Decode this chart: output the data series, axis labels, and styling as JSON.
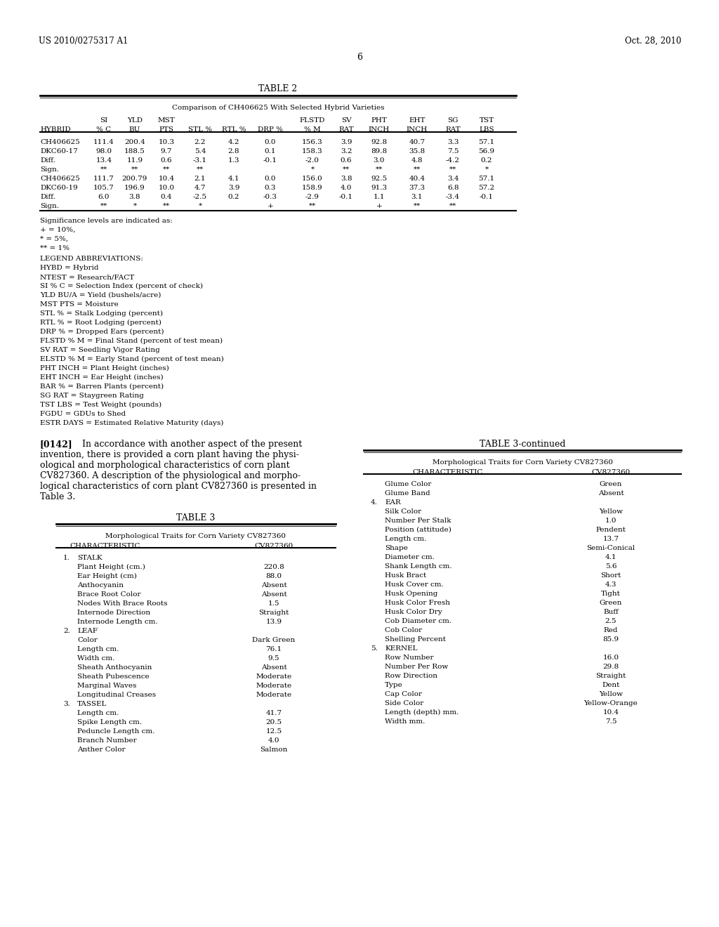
{
  "bg_color": "#ffffff",
  "header_left": "US 2010/0275317 A1",
  "header_right": "Oct. 28, 2010",
  "page_number": "6",
  "table2_title": "TABLE 2",
  "table2_subtitle": "Comparison of CH406625 With Selected Hybrid Varieties",
  "table2_data": [
    [
      "CH406625",
      "111.4",
      "200.4",
      "10.3",
      "2.2",
      "4.2",
      "0.0",
      "156.3",
      "3.9",
      "92.8",
      "40.7",
      "3.3",
      "57.1"
    ],
    [
      "DKC60-17",
      "98.0",
      "188.5",
      "9.7",
      "5.4",
      "2.8",
      "0.1",
      "158.3",
      "3.2",
      "89.8",
      "35.8",
      "7.5",
      "56.9"
    ],
    [
      "Diff.",
      "13.4",
      "11.9",
      "0.6",
      "-3.1",
      "1.3",
      "-0.1",
      "-2.0",
      "0.6",
      "3.0",
      "4.8",
      "-4.2",
      "0.2"
    ],
    [
      "Sign.",
      "**",
      "**",
      "**",
      "**",
      "",
      "",
      "*",
      "**",
      "**",
      "**",
      "**",
      "*"
    ],
    [
      "CH406625",
      "111.7",
      "200.79",
      "10.4",
      "2.1",
      "4.1",
      "0.0",
      "156.0",
      "3.8",
      "92.5",
      "40.4",
      "3.4",
      "57.1"
    ],
    [
      "DKC60-19",
      "105.7",
      "196.9",
      "10.0",
      "4.7",
      "3.9",
      "0.3",
      "158.9",
      "4.0",
      "91.3",
      "37.3",
      "6.8",
      "57.2"
    ],
    [
      "Diff.",
      "6.0",
      "3.8",
      "0.4",
      "-2.5",
      "0.2",
      "-0.3",
      "-2.9",
      "-0.1",
      "1.1",
      "3.1",
      "-3.4",
      "-0.1"
    ],
    [
      "Sign.",
      "**",
      "*",
      "**",
      "*",
      "",
      "+",
      "**",
      "",
      "+",
      "**",
      "**",
      ""
    ]
  ],
  "sig_notes": [
    "Significance levels are indicated as:",
    "+ = 10%,",
    "* = 5%,",
    "** = 1%"
  ],
  "legend_abbrevs": [
    "LEGEND ABBREVIATIONS:",
    "HYBD = Hybrid",
    "NTEST = Research/FACT",
    "SI % C = Selection Index (percent of check)",
    "YLD BU/A = Yield (bushels/acre)",
    "MST PTS = Moisture",
    "STL % = Stalk Lodging (percent)",
    "RTL % = Root Lodging (percent)",
    "DRP % = Dropped Ears (percent)",
    "FLSTD % M = Final Stand (percent of test mean)",
    "SV RAT = Seedling Vigor Rating",
    "ELSTD % M = Early Stand (percent of test mean)",
    "PHT INCH = Plant Height (inches)",
    "EHT INCH = Ear Height (inches)",
    "BAR % = Barren Plants (percent)",
    "SG RAT = Staygreen Rating",
    "TST LBS = Test Weight (pounds)",
    "FGDU = GDUs to Shed",
    "ESTR DAYS = Estimated Relative Maturity (days)"
  ],
  "paragraph_num": "[0142]",
  "paragraph_lines": [
    "In accordance with another aspect of the present",
    "invention, there is provided a corn plant having the physi-",
    "ological and morphological characteristics of corn plant",
    "CV827360. A description of the physiological and morpho-",
    "logical characteristics of corn plant CV827360 is presented in",
    "Table 3."
  ],
  "table3_title": "TABLE 3",
  "table3_subtitle": "Morphological Traits for Corn Variety CV827360",
  "table3_col_headers": [
    "CHARACTERISTIC",
    "CV827360"
  ],
  "table3_data": [
    [
      "1.",
      "STALK",
      ""
    ],
    [
      "",
      "Plant Height (cm.)",
      "220.8"
    ],
    [
      "",
      "Ear Height (cm)",
      "88.0"
    ],
    [
      "",
      "Anthocyanin",
      "Absent"
    ],
    [
      "",
      "Brace Root Color",
      "Absent"
    ],
    [
      "",
      "Nodes With Brace Roots",
      "1.5"
    ],
    [
      "",
      "Internode Direction",
      "Straight"
    ],
    [
      "",
      "Internode Length cm.",
      "13.9"
    ],
    [
      "2.",
      "LEAF",
      ""
    ],
    [
      "",
      "Color",
      "Dark Green"
    ],
    [
      "",
      "Length cm.",
      "76.1"
    ],
    [
      "",
      "Width cm.",
      "9.5"
    ],
    [
      "",
      "Sheath Anthocyanin",
      "Absent"
    ],
    [
      "",
      "Sheath Pubescence",
      "Moderate"
    ],
    [
      "",
      "Marginal Waves",
      "Moderate"
    ],
    [
      "",
      "Longitudinal Creases",
      "Moderate"
    ],
    [
      "3.",
      "TASSEL",
      ""
    ],
    [
      "",
      "Length cm.",
      "41.7"
    ],
    [
      "",
      "Spike Length cm.",
      "20.5"
    ],
    [
      "",
      "Peduncle Length cm.",
      "12.5"
    ],
    [
      "",
      "Branch Number",
      "4.0"
    ],
    [
      "",
      "Anther Color",
      "Salmon"
    ]
  ],
  "table3cont_title": "TABLE 3-continued",
  "table3cont_subtitle": "Morphological Traits for Corn Variety CV827360",
  "table3cont_col_headers": [
    "CHARACTERISTIC",
    "CV827360"
  ],
  "table3cont_data": [
    [
      "",
      "Glume Color",
      "Green"
    ],
    [
      "",
      "Glume Band",
      "Absent"
    ],
    [
      "4.",
      "EAR",
      ""
    ],
    [
      "",
      "Silk Color",
      "Yellow"
    ],
    [
      "",
      "Number Per Stalk",
      "1.0"
    ],
    [
      "",
      "Position (attitude)",
      "Pendent"
    ],
    [
      "",
      "Length cm.",
      "13.7"
    ],
    [
      "",
      "Shape",
      "Semi-Conical"
    ],
    [
      "",
      "Diameter cm.",
      "4.1"
    ],
    [
      "",
      "Shank Length cm.",
      "5.6"
    ],
    [
      "",
      "Husk Bract",
      "Short"
    ],
    [
      "",
      "Husk Cover cm.",
      "4.3"
    ],
    [
      "",
      "Husk Opening",
      "Tight"
    ],
    [
      "",
      "Husk Color Fresh",
      "Green"
    ],
    [
      "",
      "Husk Color Dry",
      "Buff"
    ],
    [
      "",
      "Cob Diameter cm.",
      "2.5"
    ],
    [
      "",
      "Cob Color",
      "Red"
    ],
    [
      "",
      "Shelling Percent",
      "85.9"
    ],
    [
      "5.",
      "KERNEL",
      ""
    ],
    [
      "",
      "Row Number",
      "16.0"
    ],
    [
      "",
      "Number Per Row",
      "29.8"
    ],
    [
      "",
      "Row Direction",
      "Straight"
    ],
    [
      "",
      "Type",
      "Dent"
    ],
    [
      "",
      "Cap Color",
      "Yellow"
    ],
    [
      "",
      "Side Color",
      "Yellow-Orange"
    ],
    [
      "",
      "Length (depth) mm.",
      "10.4"
    ],
    [
      "",
      "Width mm.",
      "7.5"
    ]
  ]
}
